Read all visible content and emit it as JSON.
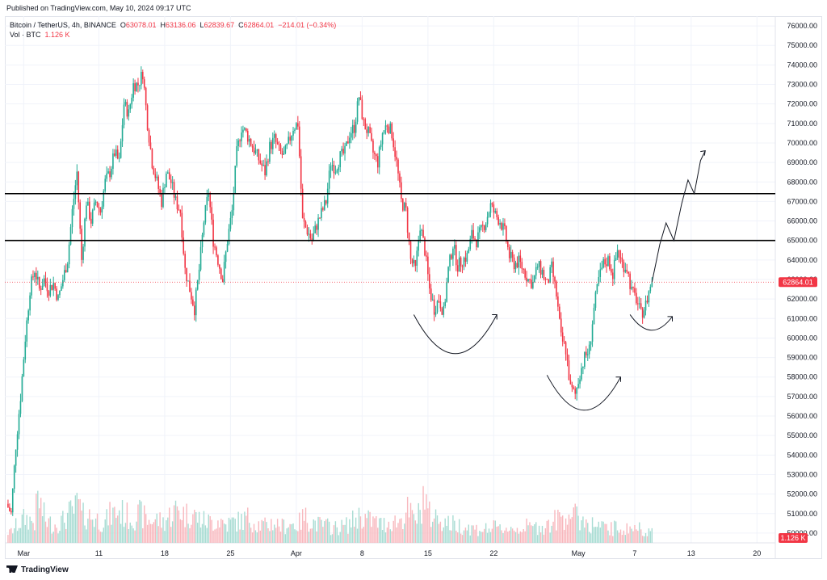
{
  "header": {
    "published": "Published on TradingView.com, May 10, 2024 09:17 UTC"
  },
  "legend": {
    "symbol": "Bitcoin / TetherUS, 4h, BINANCE",
    "open_label": "O",
    "open": "63078.01",
    "high_label": "H",
    "high": "63136.06",
    "low_label": "L",
    "low": "62839.67",
    "close_label": "C",
    "close": "62864.01",
    "change": "−214.01 (−0.34%)",
    "vol_label": "Vol · BTC",
    "vol_value": "1.126 K"
  },
  "footer": {
    "brand": "TradingView"
  },
  "colors": {
    "up": "#22ab94",
    "down": "#f23645",
    "up_vol": "#a8dcd3",
    "down_vol": "#f8b7bd",
    "price_tag": "#f23645",
    "grid": "#f0f3fa"
  },
  "chart_data": {
    "type": "candlestick",
    "symbol": "Bitcoin / TetherUS",
    "interval": "4h",
    "exchange": "BINANCE",
    "ylim": [
      49500,
      76500
    ],
    "y_ticks": [
      50000,
      51000,
      52000,
      53000,
      54000,
      55000,
      56000,
      57000,
      58000,
      59000,
      60000,
      61000,
      62000,
      63000,
      64000,
      65000,
      66000,
      67000,
      68000,
      69000,
      70000,
      71000,
      72000,
      73000,
      74000,
      75000,
      76000
    ],
    "x_ticks": [
      {
        "label": "Mar",
        "index": 11
      },
      {
        "label": "11",
        "index": 59
      },
      {
        "label": "18",
        "index": 101
      },
      {
        "label": "25",
        "index": 143
      },
      {
        "label": "Apr",
        "index": 185
      },
      {
        "label": "8",
        "index": 227
      },
      {
        "label": "15",
        "index": 269
      },
      {
        "label": "22",
        "index": 311
      },
      {
        "label": "May",
        "index": 365
      },
      {
        "label": "7",
        "index": 401
      },
      {
        "label": "13",
        "index": 437
      },
      {
        "label": "20",
        "index": 479
      }
    ],
    "last_price": 62864.01,
    "last_price_label": "62864.01",
    "volume_label": "1.126 K",
    "resistance_levels": [
      67400,
      65000
    ],
    "close_path": [
      [
        0,
        51500
      ],
      [
        3,
        51000
      ],
      [
        6,
        54500
      ],
      [
        9,
        57000
      ],
      [
        12,
        60000
      ],
      [
        15,
        62500
      ],
      [
        18,
        63500
      ],
      [
        21,
        62500
      ],
      [
        24,
        63000
      ],
      [
        27,
        62500
      ],
      [
        30,
        62800
      ],
      [
        33,
        62000
      ],
      [
        36,
        63000
      ],
      [
        39,
        64000
      ],
      [
        42,
        66500
      ],
      [
        45,
        68500
      ],
      [
        48,
        64000
      ],
      [
        51,
        67000
      ],
      [
        54,
        66000
      ],
      [
        57,
        67000
      ],
      [
        60,
        66500
      ],
      [
        63,
        68000
      ],
      [
        66,
        68500
      ],
      [
        69,
        69500
      ],
      [
        72,
        69000
      ],
      [
        75,
        72000
      ],
      [
        78,
        71500
      ],
      [
        81,
        73000
      ],
      [
        84,
        73000
      ],
      [
        87,
        73600
      ],
      [
        90,
        71000
      ],
      [
        93,
        69000
      ],
      [
        96,
        68000
      ],
      [
        99,
        67000
      ],
      [
        102,
        68500
      ],
      [
        105,
        68000
      ],
      [
        108,
        67000
      ],
      [
        111,
        66500
      ],
      [
        114,
        63500
      ],
      [
        117,
        62500
      ],
      [
        120,
        61500
      ],
      [
        123,
        63500
      ],
      [
        126,
        66000
      ],
      [
        129,
        67500
      ],
      [
        132,
        65000
      ],
      [
        135,
        64000
      ],
      [
        138,
        63000
      ],
      [
        141,
        65000
      ],
      [
        144,
        66500
      ],
      [
        147,
        69500
      ],
      [
        150,
        70800
      ],
      [
        153,
        70500
      ],
      [
        156,
        70000
      ],
      [
        159,
        69500
      ],
      [
        162,
        69000
      ],
      [
        165,
        68500
      ],
      [
        168,
        69800
      ],
      [
        171,
        70200
      ],
      [
        174,
        69600
      ],
      [
        177,
        69300
      ],
      [
        180,
        70000
      ],
      [
        183,
        70800
      ],
      [
        186,
        71000
      ],
      [
        189,
        66000
      ],
      [
        192,
        65500
      ],
      [
        195,
        65000
      ],
      [
        198,
        65800
      ],
      [
        201,
        66400
      ],
      [
        204,
        67000
      ],
      [
        207,
        69000
      ],
      [
        210,
        68700
      ],
      [
        213,
        69300
      ],
      [
        216,
        69500
      ],
      [
        219,
        70500
      ],
      [
        222,
        70800
      ],
      [
        225,
        72400
      ],
      [
        228,
        71000
      ],
      [
        231,
        70500
      ],
      [
        234,
        69500
      ],
      [
        237,
        69000
      ],
      [
        240,
        70500
      ],
      [
        243,
        71000
      ],
      [
        246,
        70500
      ],
      [
        249,
        69000
      ],
      [
        252,
        67000
      ],
      [
        255,
        66500
      ],
      [
        258,
        64000
      ],
      [
        261,
        63500
      ],
      [
        264,
        65800
      ],
      [
        267,
        64500
      ],
      [
        270,
        62500
      ],
      [
        273,
        61500
      ],
      [
        276,
        62000
      ],
      [
        279,
        61300
      ],
      [
        282,
        63500
      ],
      [
        285,
        64800
      ],
      [
        288,
        63700
      ],
      [
        291,
        64000
      ],
      [
        294,
        64200
      ],
      [
        297,
        65300
      ],
      [
        300,
        65000
      ],
      [
        303,
        65500
      ],
      [
        306,
        66000
      ],
      [
        309,
        66800
      ],
      [
        312,
        66300
      ],
      [
        315,
        66000
      ],
      [
        318,
        65400
      ],
      [
        321,
        64200
      ],
      [
        324,
        63800
      ],
      [
        327,
        63900
      ],
      [
        330,
        63500
      ],
      [
        333,
        63000
      ],
      [
        336,
        62800
      ],
      [
        339,
        63700
      ],
      [
        342,
        63400
      ],
      [
        345,
        62700
      ],
      [
        348,
        63600
      ],
      [
        351,
        62200
      ],
      [
        354,
        60000
      ],
      [
        357,
        59400
      ],
      [
        360,
        57400
      ],
      [
        363,
        57100
      ],
      [
        366,
        58200
      ],
      [
        369,
        59000
      ],
      [
        372,
        59400
      ],
      [
        375,
        61500
      ],
      [
        378,
        63000
      ],
      [
        381,
        63800
      ],
      [
        384,
        64000
      ],
      [
        387,
        63300
      ],
      [
        390,
        64500
      ],
      [
        393,
        63800
      ],
      [
        396,
        63600
      ],
      [
        399,
        62400
      ],
      [
        402,
        62000
      ],
      [
        405,
        61200
      ],
      [
        408,
        61700
      ],
      [
        411,
        62700
      ],
      [
        412,
        62864
      ]
    ],
    "volume_path": [
      [
        0,
        0.9
      ],
      [
        2,
        0.7
      ],
      [
        6,
        1.2
      ],
      [
        12,
        1.8
      ],
      [
        18,
        1.5
      ],
      [
        20,
        3.3
      ],
      [
        25,
        1.6
      ],
      [
        30,
        1.3
      ],
      [
        36,
        1.6
      ],
      [
        40,
        2.1
      ],
      [
        44,
        2.4
      ],
      [
        46,
        3.0
      ],
      [
        48,
        1.9
      ],
      [
        52,
        2.0
      ],
      [
        58,
        1.7
      ],
      [
        63,
        1.5
      ],
      [
        66,
        2.0
      ],
      [
        72,
        2.3
      ],
      [
        76,
        2.0
      ],
      [
        80,
        1.8
      ],
      [
        86,
        2.1
      ],
      [
        90,
        1.6
      ],
      [
        96,
        1.7
      ],
      [
        100,
        1.5
      ],
      [
        106,
        2.2
      ],
      [
        110,
        2.5
      ],
      [
        114,
        2.0
      ],
      [
        118,
        2.2
      ],
      [
        122,
        1.8
      ],
      [
        126,
        1.6
      ],
      [
        132,
        1.5
      ],
      [
        136,
        1.7
      ],
      [
        140,
        1.3
      ],
      [
        144,
        1.5
      ],
      [
        150,
        1.6
      ],
      [
        154,
        1.8
      ],
      [
        160,
        1.4
      ],
      [
        166,
        1.2
      ],
      [
        170,
        1.5
      ],
      [
        176,
        1.2
      ],
      [
        180,
        1.4
      ],
      [
        186,
        1.3
      ],
      [
        190,
        1.9
      ],
      [
        196,
        1.5
      ],
      [
        200,
        1.3
      ],
      [
        206,
        1.2
      ],
      [
        210,
        1.1
      ],
      [
        216,
        1.2
      ],
      [
        220,
        1.5
      ],
      [
        226,
        2.0
      ],
      [
        230,
        1.7
      ],
      [
        236,
        1.5
      ],
      [
        240,
        1.3
      ],
      [
        246,
        1.6
      ],
      [
        250,
        1.5
      ],
      [
        256,
        2.3
      ],
      [
        260,
        1.7
      ],
      [
        264,
        2.1
      ],
      [
        266,
        3.6
      ],
      [
        270,
        2.0
      ],
      [
        274,
        1.9
      ],
      [
        278,
        1.7
      ],
      [
        282,
        1.4
      ],
      [
        288,
        1.3
      ],
      [
        292,
        1.2
      ],
      [
        296,
        1.1
      ],
      [
        300,
        1.0
      ],
      [
        306,
        1.0
      ],
      [
        310,
        1.1
      ],
      [
        316,
        1.0
      ],
      [
        320,
        1.1
      ],
      [
        326,
        1.0
      ],
      [
        330,
        1.2
      ],
      [
        336,
        1.1
      ],
      [
        340,
        1.2
      ],
      [
        346,
        1.3
      ],
      [
        350,
        1.6
      ],
      [
        356,
        2.0
      ],
      [
        360,
        2.2
      ],
      [
        364,
        1.8
      ],
      [
        368,
        1.7
      ],
      [
        372,
        1.4
      ],
      [
        378,
        1.2
      ],
      [
        384,
        1.0
      ],
      [
        390,
        1.1
      ],
      [
        396,
        1.0
      ],
      [
        400,
        1.1
      ],
      [
        406,
        1.0
      ],
      [
        412,
        0.9
      ]
    ],
    "annotations": {
      "projection_path": [
        [
          412,
          62864
        ],
        [
          417,
          64800
        ],
        [
          421,
          65900
        ],
        [
          426,
          65000
        ],
        [
          431,
          66900
        ],
        [
          435,
          68100
        ],
        [
          439,
          67400
        ],
        [
          443,
          69100
        ],
        [
          446,
          69600
        ]
      ],
      "arcs": [
        {
          "from": [
            260,
            61200
          ],
          "to": [
            313,
            61200
          ],
          "bottom": 59200,
          "arrow_end": true
        },
        {
          "from": [
            345,
            58100
          ],
          "to": [
            392,
            58000
          ],
          "bottom": 56300,
          "arrow_end": true
        },
        {
          "from": [
            398,
            61200
          ],
          "to": [
            425,
            61100
          ],
          "bottom": 60400,
          "arrow_end": true
        }
      ]
    }
  }
}
